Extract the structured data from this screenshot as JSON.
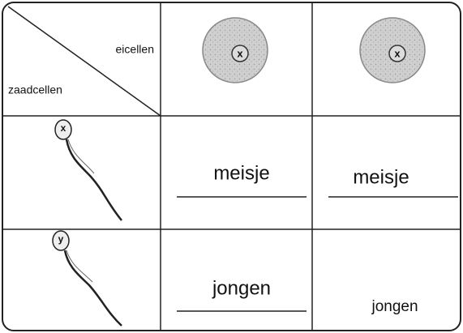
{
  "header": {
    "eggs_label": "eicellen",
    "sperm_label": "zaadcellen",
    "eggs": [
      "x",
      "x"
    ]
  },
  "rows": [
    {
      "sperm": "x",
      "cells": [
        "meisje",
        "meisje"
      ]
    },
    {
      "sperm": "y",
      "cells": [
        "jongen",
        "jongen"
      ]
    }
  ]
}
